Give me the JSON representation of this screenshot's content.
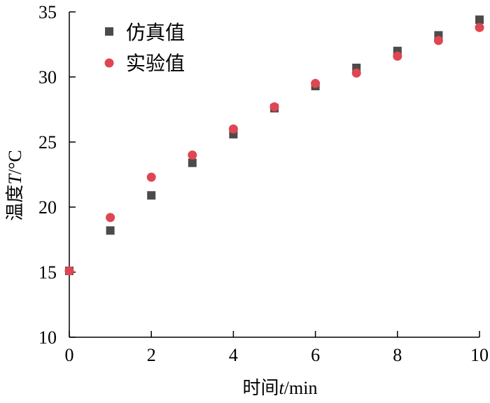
{
  "chart_data": {
    "type": "scatter",
    "xlabel": {
      "prefix": "时间",
      "var": "t",
      "unit": "/min"
    },
    "ylabel": {
      "prefix": "温度",
      "var": "T",
      "unit": "/°C"
    },
    "xlim": [
      0,
      10
    ],
    "ylim": [
      10,
      35
    ],
    "xticks": [
      0,
      2,
      4,
      6,
      8,
      10
    ],
    "yticks": [
      10,
      15,
      20,
      25,
      30,
      35
    ],
    "grid": false,
    "legend_position": "top-left",
    "series": [
      {
        "name": "仿真值",
        "marker": "square",
        "color": "#4d4a4a",
        "points": [
          {
            "x": 0,
            "y": 15.1
          },
          {
            "x": 1,
            "y": 18.2
          },
          {
            "x": 2,
            "y": 20.9
          },
          {
            "x": 3,
            "y": 23.4
          },
          {
            "x": 4,
            "y": 25.6
          },
          {
            "x": 5,
            "y": 27.6
          },
          {
            "x": 6,
            "y": 29.3
          },
          {
            "x": 7,
            "y": 30.7
          },
          {
            "x": 8,
            "y": 32.0
          },
          {
            "x": 9,
            "y": 33.2
          },
          {
            "x": 10,
            "y": 34.4
          }
        ]
      },
      {
        "name": "实验值",
        "marker": "circle",
        "color": "#e04552",
        "points": [
          {
            "x": 0,
            "y": 15.1
          },
          {
            "x": 1,
            "y": 19.2
          },
          {
            "x": 2,
            "y": 22.3
          },
          {
            "x": 3,
            "y": 24.0
          },
          {
            "x": 4,
            "y": 26.0
          },
          {
            "x": 5,
            "y": 27.7
          },
          {
            "x": 6,
            "y": 29.5
          },
          {
            "x": 7,
            "y": 30.3
          },
          {
            "x": 8,
            "y": 31.6
          },
          {
            "x": 9,
            "y": 32.8
          },
          {
            "x": 10,
            "y": 33.8
          }
        ]
      }
    ]
  }
}
